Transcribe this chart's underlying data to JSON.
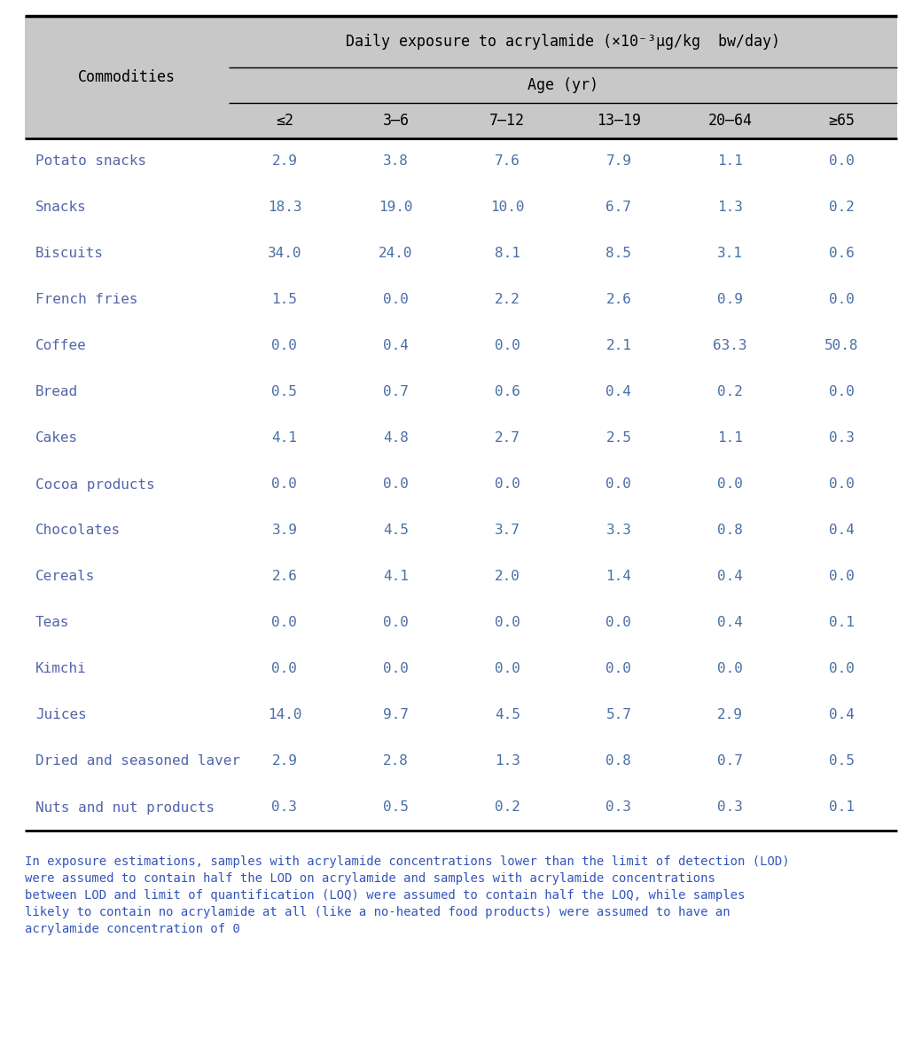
{
  "header_main": "Daily exposure to acrylamide (×10⁻³μg/kg  bw/day)",
  "header_sub": "Age (yr)",
  "col_header": "Commodities",
  "age_groups": [
    "≤2",
    "3–6",
    "7–12",
    "13–19",
    "20–64",
    "≥65"
  ],
  "commodities": [
    "Potato snacks",
    "Snacks",
    "Biscuits",
    "French fries",
    "Coffee",
    "Bread",
    "Cakes",
    "Cocoa products",
    "Chocolates",
    "Cereals",
    "Teas",
    "Kimchi",
    "Juices",
    "Dried and seasoned laver",
    "Nuts and nut products"
  ],
  "data": [
    [
      2.9,
      3.8,
      7.6,
      7.9,
      1.1,
      0.0
    ],
    [
      18.3,
      19.0,
      10.0,
      6.7,
      1.3,
      0.2
    ],
    [
      34.0,
      24.0,
      8.1,
      8.5,
      3.1,
      0.6
    ],
    [
      1.5,
      0.0,
      2.2,
      2.6,
      0.9,
      0.0
    ],
    [
      0.0,
      0.4,
      0.0,
      2.1,
      63.3,
      50.8
    ],
    [
      0.5,
      0.7,
      0.6,
      0.4,
      0.2,
      0.0
    ],
    [
      4.1,
      4.8,
      2.7,
      2.5,
      1.1,
      0.3
    ],
    [
      0.0,
      0.0,
      0.0,
      0.0,
      0.0,
      0.0
    ],
    [
      3.9,
      4.5,
      3.7,
      3.3,
      0.8,
      0.4
    ],
    [
      2.6,
      4.1,
      2.0,
      1.4,
      0.4,
      0.0
    ],
    [
      0.0,
      0.0,
      0.0,
      0.0,
      0.4,
      0.1
    ],
    [
      0.0,
      0.0,
      0.0,
      0.0,
      0.0,
      0.0
    ],
    [
      14.0,
      9.7,
      4.5,
      5.7,
      2.9,
      0.4
    ],
    [
      2.9,
      2.8,
      1.3,
      0.8,
      0.7,
      0.5
    ],
    [
      0.3,
      0.5,
      0.2,
      0.3,
      0.3,
      0.1
    ]
  ],
  "footnote_lines": [
    "In exposure estimations, samples with acrylamide concentrations lower than the limit of detection (LOD)",
    "were assumed to contain half the LOD on acrylamide and samples with acrylamide concentrations",
    "between LOD and limit of quantification (LOQ) were assumed to contain half the LOQ, while samples",
    "likely to contain no acrylamide at all (like a no-heated food products) were assumed to have an",
    "acrylamide concentration of 0"
  ],
  "header_bg": "#c8c8c8",
  "text_color_header": "#000000",
  "text_color_data": "#4a6fa5",
  "text_color_commodity": "#5566aa",
  "text_color_footnote": "#3355bb",
  "font_size_header_main": 12,
  "font_size_header_sub": 12,
  "font_size_col_labels": 12,
  "font_size_data": 11.5,
  "font_size_footnote": 10
}
